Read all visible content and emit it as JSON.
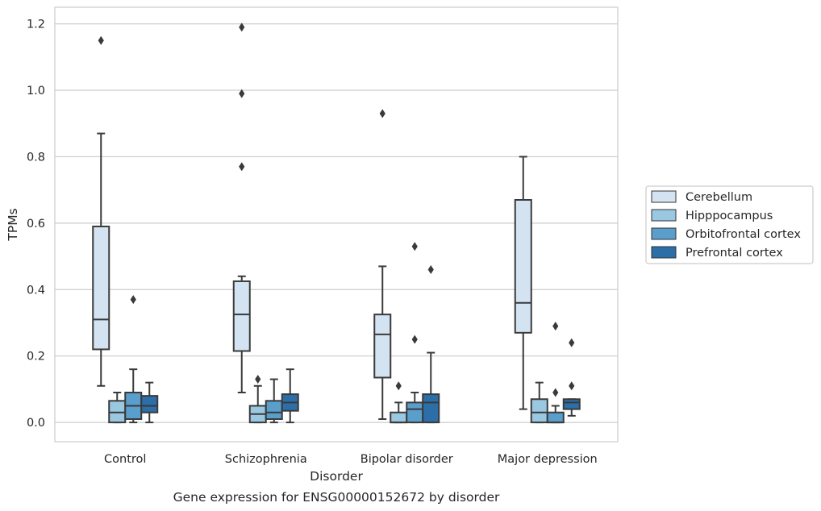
{
  "chart_data": {
    "type": "box",
    "caption": "Gene expression for ENSG00000152672 by disorder",
    "xlabel": "Disorder",
    "ylabel": "TPMs",
    "ylim": [
      -0.058,
      1.25
    ],
    "yticks": [
      0.0,
      0.2,
      0.4,
      0.6,
      0.8,
      1.0,
      1.2
    ],
    "ytick_labels": [
      "0.0",
      "0.2",
      "0.4",
      "0.6",
      "0.8",
      "1.0",
      "1.2"
    ],
    "grid": "horizontal",
    "legend_placement": "right",
    "categories": [
      "Control",
      "Schizophrenia",
      "Bipolar disorder",
      "Major depression"
    ],
    "series": [
      {
        "name": "Cerebellum",
        "color": "#d3e3f1",
        "boxes": [
          {
            "whisker_low": 0.11,
            "q1": 0.22,
            "median": 0.31,
            "q3": 0.59,
            "whisker_high": 0.87,
            "outliers": [
              1.15
            ]
          },
          {
            "whisker_low": 0.09,
            "q1": 0.215,
            "median": 0.325,
            "q3": 0.425,
            "whisker_high": 0.44,
            "outliers": [
              0.77,
              0.99,
              1.19
            ]
          },
          {
            "whisker_low": 0.01,
            "q1": 0.135,
            "median": 0.265,
            "q3": 0.325,
            "whisker_high": 0.47,
            "outliers": [
              0.93
            ]
          },
          {
            "whisker_low": 0.04,
            "q1": 0.27,
            "median": 0.36,
            "q3": 0.67,
            "whisker_high": 0.8,
            "outliers": []
          }
        ]
      },
      {
        "name": "Hipppocampus",
        "color": "#9ac8e0",
        "boxes": [
          {
            "whisker_low": 0.0,
            "q1": 0.0,
            "median": 0.03,
            "q3": 0.065,
            "whisker_high": 0.09,
            "outliers": []
          },
          {
            "whisker_low": 0.0,
            "q1": 0.0,
            "median": 0.025,
            "q3": 0.05,
            "whisker_high": 0.11,
            "outliers": [
              0.13
            ]
          },
          {
            "whisker_low": 0.0,
            "q1": 0.0,
            "median": 0.0,
            "q3": 0.03,
            "whisker_high": 0.06,
            "outliers": [
              0.11
            ]
          },
          {
            "whisker_low": 0.0,
            "q1": 0.0,
            "median": 0.03,
            "q3": 0.07,
            "whisker_high": 0.12,
            "outliers": []
          }
        ]
      },
      {
        "name": "Orbitofrontal cortex",
        "color": "#5a9ecc",
        "boxes": [
          {
            "whisker_low": 0.0,
            "q1": 0.01,
            "median": 0.05,
            "q3": 0.09,
            "whisker_high": 0.16,
            "outliers": [
              0.37
            ]
          },
          {
            "whisker_low": 0.0,
            "q1": 0.01,
            "median": 0.03,
            "q3": 0.065,
            "whisker_high": 0.13,
            "outliers": []
          },
          {
            "whisker_low": 0.0,
            "q1": 0.0,
            "median": 0.04,
            "q3": 0.06,
            "whisker_high": 0.09,
            "outliers": [
              0.25,
              0.53
            ]
          },
          {
            "whisker_low": 0.0,
            "q1": 0.0,
            "median": 0.0,
            "q3": 0.03,
            "whisker_high": 0.05,
            "outliers": [
              0.09,
              0.29
            ]
          }
        ]
      },
      {
        "name": "Prefrontal cortex",
        "color": "#2c6ea8",
        "boxes": [
          {
            "whisker_low": 0.0,
            "q1": 0.03,
            "median": 0.05,
            "q3": 0.08,
            "whisker_high": 0.12,
            "outliers": []
          },
          {
            "whisker_low": 0.0,
            "q1": 0.035,
            "median": 0.06,
            "q3": 0.085,
            "whisker_high": 0.16,
            "outliers": []
          },
          {
            "whisker_low": 0.0,
            "q1": 0.0,
            "median": 0.06,
            "q3": 0.085,
            "whisker_high": 0.21,
            "outliers": [
              0.46
            ]
          },
          {
            "whisker_low": 0.02,
            "q1": 0.04,
            "median": 0.06,
            "q3": 0.07,
            "whisker_high": 0.07,
            "outliers": [
              0.11,
              0.24
            ]
          }
        ]
      }
    ]
  }
}
